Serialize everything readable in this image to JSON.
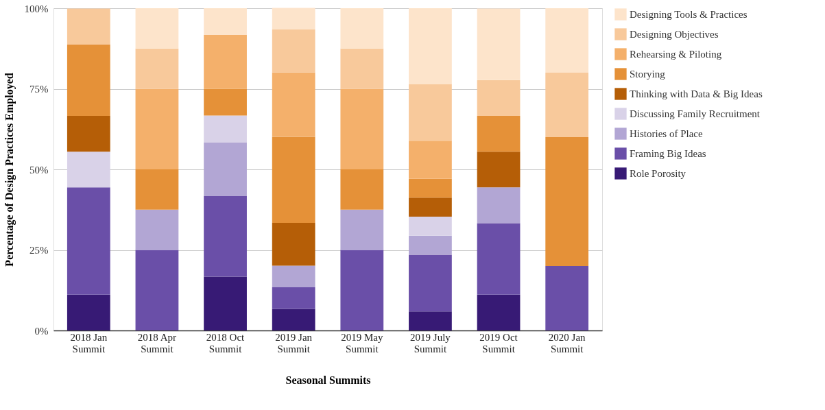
{
  "chart_data": {
    "type": "bar",
    "stacked": true,
    "xlabel": "Seasonal Summits",
    "ylabel": "Percentage of Design Practices Employed",
    "categories": [
      "2018 Jan Summit",
      "2018 Apr Summit",
      "2018 Oct Summit",
      "2019 Jan Summit",
      "2019 May Summit",
      "2019 July Summit",
      "2019 Oct Summit",
      "2020 Jan Summit"
    ],
    "series": [
      {
        "name": "Role Porosity",
        "color": "#371a75",
        "values": [
          11.1,
          null,
          16.7,
          6.7,
          null,
          5.9,
          11.1,
          null
        ]
      },
      {
        "name": "Framing Big Ideas",
        "color": "#6a4fa8",
        "values": [
          33.3,
          25,
          25,
          6.7,
          25,
          17.6,
          22.2,
          20
        ]
      },
      {
        "name": "Histories of Place",
        "color": "#b2a6d4",
        "values": [
          null,
          12.5,
          16.7,
          6.7,
          12.5,
          5.9,
          11.1,
          null
        ]
      },
      {
        "name": "Discussing Family Recruitment",
        "color": "#d9d2e8",
        "values": [
          11.1,
          null,
          8.3,
          null,
          null,
          5.9,
          null,
          null
        ]
      },
      {
        "name": "Thinking with Data & Big Ideas",
        "color": "#b55e07",
        "values": [
          11.1,
          null,
          null,
          13.3,
          null,
          5.9,
          11.1,
          null
        ]
      },
      {
        "name": "Storying",
        "color": "#e59138",
        "values": [
          22.2,
          12.5,
          8.3,
          26.7,
          12.5,
          5.9,
          11.1,
          40
        ]
      },
      {
        "name": "Rehearsing & Piloting",
        "color": "#f4b06b",
        "values": [
          null,
          25,
          16.7,
          20,
          25,
          11.8,
          null,
          null
        ]
      },
      {
        "name": "Designing Objectives",
        "color": "#f8c99b",
        "values": [
          11.1,
          12.5,
          null,
          13.3,
          12.5,
          17.6,
          11.1,
          20
        ]
      },
      {
        "name": "Designing Tools & Practices",
        "color": "#fde4cb",
        "values": [
          null,
          12.5,
          8.3,
          6.7,
          12.5,
          23.5,
          22.2,
          20
        ]
      }
    ],
    "ylim": [
      0,
      100
    ],
    "yticks": [
      {
        "value": 0,
        "label": "0%"
      },
      {
        "value": 25,
        "label": "25%"
      },
      {
        "value": 50,
        "label": "50%"
      },
      {
        "value": 75,
        "label": "75%"
      },
      {
        "value": 100,
        "label": "100%"
      }
    ],
    "grid": "y",
    "legend": "right"
  }
}
